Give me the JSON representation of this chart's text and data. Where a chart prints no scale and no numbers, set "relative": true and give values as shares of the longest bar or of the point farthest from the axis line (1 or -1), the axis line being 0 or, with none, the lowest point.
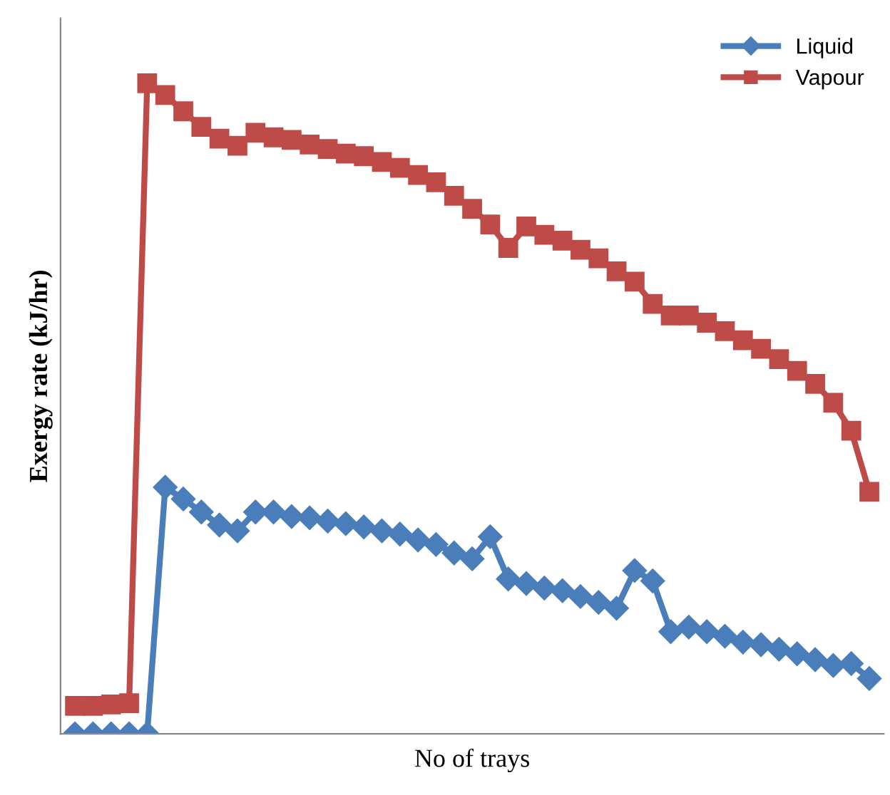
{
  "chart_data": {
    "type": "line",
    "relative": true,
    "xlabel": "No of trays",
    "ylabel": "Exergy rate (kJ/hr)",
    "categories": [
      null,
      null,
      null,
      null,
      null,
      null,
      null,
      null,
      null,
      null,
      null,
      null,
      null,
      null,
      null,
      null,
      null,
      null,
      null,
      null,
      null,
      null,
      null,
      null,
      null,
      null,
      null,
      null,
      null,
      null,
      null,
      null,
      null,
      null,
      null,
      null,
      null,
      null,
      null,
      null,
      null,
      null,
      null,
      null,
      null
    ],
    "series": [
      {
        "name": "Liquid",
        "color": "#4a7ebb",
        "marker": "diamond",
        "values": [
          0,
          0,
          0,
          0,
          0,
          0.379,
          0.361,
          0.341,
          0.321,
          0.312,
          0.341,
          0.341,
          0.334,
          0.332,
          0.327,
          0.323,
          0.318,
          0.312,
          0.307,
          0.298,
          0.291,
          0.278,
          0.269,
          0.303,
          0.238,
          0.231,
          0.224,
          0.22,
          0.211,
          0.202,
          0.193,
          0.251,
          0.235,
          0.157,
          0.164,
          0.157,
          0.15,
          0.141,
          0.137,
          0.13,
          0.123,
          0.114,
          0.105,
          0.108,
          0.085
        ]
      },
      {
        "name": "Vapour",
        "color": "#be4b48",
        "marker": "square",
        "values": [
          0.043,
          0.043,
          0.045,
          0.047,
          1.0,
          0.982,
          0.957,
          0.933,
          0.915,
          0.904,
          0.924,
          0.917,
          0.913,
          0.906,
          0.899,
          0.892,
          0.888,
          0.879,
          0.87,
          0.859,
          0.848,
          0.827,
          0.807,
          0.783,
          0.747,
          0.78,
          0.767,
          0.758,
          0.744,
          0.731,
          0.711,
          0.695,
          0.661,
          0.643,
          0.643,
          0.632,
          0.619,
          0.605,
          0.592,
          0.576,
          0.558,
          0.538,
          0.509,
          0.466,
          0.372
        ]
      }
    ],
    "legend": "top right",
    "grid": false,
    "line_style": "solid"
  }
}
